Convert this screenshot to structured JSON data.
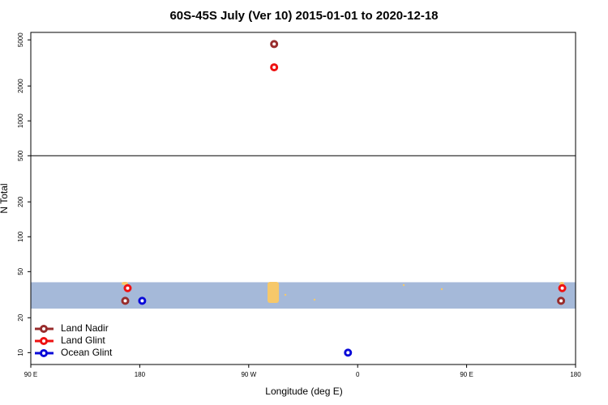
{
  "chart_data": {
    "type": "scatter",
    "title": "60S-45S July (Ver 10)   2015-01-01 to 2020-12-18",
    "xlabel": "Longitude (deg E)",
    "ylabel": "N Total",
    "xlim": [
      90,
      540
    ],
    "xticks": [
      {
        "value": 90,
        "label": "90 E"
      },
      180,
      {
        "value": 270,
        "label": "90 W"
      },
      {
        "value": 360,
        "label": "0"
      },
      {
        "value": 450,
        "label": "90 E"
      },
      {
        "value": 540,
        "label": "180"
      }
    ],
    "ylim": [
      7.9,
      5800
    ],
    "log_y": true,
    "yticks": [
      10,
      20,
      50,
      100,
      200,
      500,
      1000,
      2000,
      5000
    ],
    "hline": 500,
    "band": [
      24,
      40.5
    ],
    "band_color": "#a5b9d9",
    "legend": "bottom-left",
    "series": [
      {
        "name": "Land Nadir",
        "color": "#982c2c",
        "x": [
          291,
          168,
          528
        ],
        "values": [
          4600,
          28,
          28
        ]
      },
      {
        "name": "Land Glint",
        "color": "#ee1111",
        "x": [
          291,
          170,
          529
        ],
        "values": [
          2900,
          36,
          36
        ]
      },
      {
        "name": "Ocean Glint",
        "color": "#0a0ad8",
        "x": [
          182,
          352
        ],
        "values": [
          28,
          10
        ]
      }
    ]
  }
}
